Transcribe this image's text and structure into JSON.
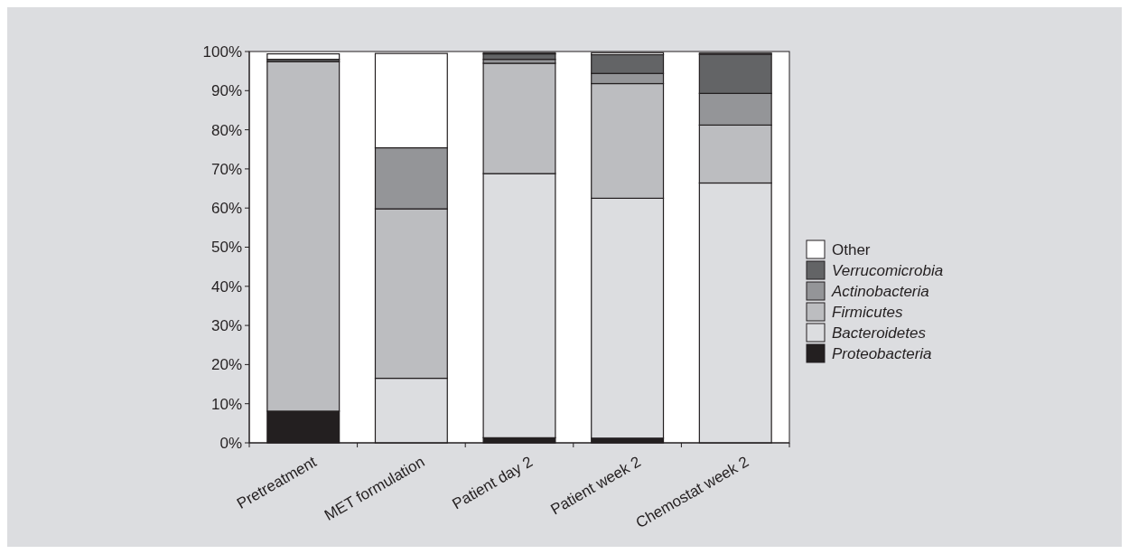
{
  "chart_data": {
    "type": "bar",
    "stacked": true,
    "categories": [
      "Pretreatment",
      "MET formulation",
      "Patient day 2",
      "Patient week 2",
      "Chemostat week 2"
    ],
    "series": [
      {
        "name": "Proteobacteria",
        "color": "#231f20",
        "values": [
          8.1,
          null,
          1.3,
          1.2,
          null
        ]
      },
      {
        "name": "Bacteroidetes",
        "color": "#dcdde0",
        "values": [
          null,
          16.5,
          67.5,
          61.3,
          66.4
        ]
      },
      {
        "name": "Firmicutes",
        "color": "#bcbdc0",
        "values": [
          89.3,
          43.3,
          28.2,
          29.3,
          14.8
        ]
      },
      {
        "name": "Actinobacteria",
        "color": "#949598",
        "values": [
          null,
          15.6,
          1.0,
          2.6,
          8.1
        ]
      },
      {
        "name": "Verrucomicrobia",
        "color": "#636466",
        "values": [
          0.6,
          0,
          1.4,
          4.8,
          10.0
        ]
      },
      {
        "name": "Other",
        "color": "#ffffff",
        "values": [
          1.4,
          24.1,
          0.3,
          0.5,
          0.3
        ]
      }
    ],
    "ylim": [
      0,
      100
    ],
    "yticks": [
      {
        "value": 0,
        "label": "0%"
      },
      {
        "value": 10,
        "label": "10%"
      },
      {
        "value": 20,
        "label": "20%"
      },
      {
        "value": 30,
        "label": "30%"
      },
      {
        "value": 40,
        "label": "40%"
      },
      {
        "value": 50,
        "label": "50%"
      },
      {
        "value": 60,
        "label": "60%"
      },
      {
        "value": 70,
        "label": "70%"
      },
      {
        "value": 80,
        "label": "80%"
      },
      {
        "value": 90,
        "label": "90%"
      },
      {
        "value": 100,
        "label": "100%"
      }
    ],
    "grid": false,
    "legend": "right"
  }
}
